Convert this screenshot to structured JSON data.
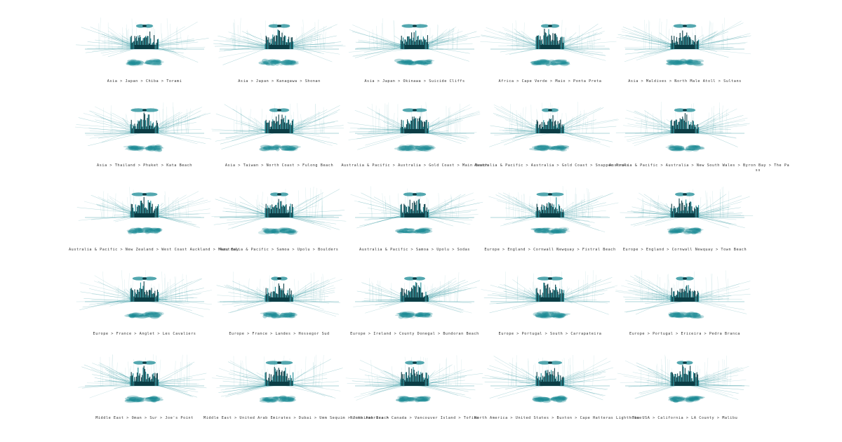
{
  "colors": {
    "accent": "#1a8a94",
    "dark": "#0b3d45",
    "light": "#9fd6dc",
    "caption": "#333333"
  },
  "panels": [
    {
      "caption": "Asia > Japan > Chiba > Torami"
    },
    {
      "caption": "Asia > Japan > Kanagawa > Shonan"
    },
    {
      "caption": "Asia > Japan > Okinawa > Suicide Cliffs"
    },
    {
      "caption": "Africa > Cape Verde > Maio > Ponta Preta"
    },
    {
      "caption": "Asia > Maldives > North Male Atoll > Sultans"
    },
    {
      "caption": "Asia > Thailand > Phuket > Kata Beach"
    },
    {
      "caption": "Asia > Taiwan > North Coast > Fulong Beach"
    },
    {
      "caption": "Australia & Pacific > Australia > Gold Coast > Main Beach"
    },
    {
      "caption": "Australia & Pacific > Australia > Gold Coast > Snapper Rocks"
    },
    {
      "caption": "Australia & Pacific > Australia > New South Wales > Byron Bay > The Pa",
      "caption_continued": "ss"
    },
    {
      "caption": "Australia & Pacific > New Zealand > West Coast Auckland > Manu Bay"
    },
    {
      "caption": "Australia & Pacific > Samoa > Upolu > Boulders"
    },
    {
      "caption": "Australia & Pacific > Samoa > Upolu > Sodas"
    },
    {
      "caption": "Europe > England > Cornwall Newquay > Fistral Beach"
    },
    {
      "caption": "Europe > England > Cornwall Newquay > Town Beach"
    },
    {
      "caption": "Europe > France > Anglet > Les Cavaliers"
    },
    {
      "caption": "Europe > France > Landes > Hossegor Sud"
    },
    {
      "caption": "Europe > Ireland > County Donegal > Bundoran Beach"
    },
    {
      "caption": "Europe > Portugal > South > Carrapateira"
    },
    {
      "caption": "Europe > Portugal > Ericeira > Pedra Branca"
    },
    {
      "caption": "Middle East > Oman > Sur > Joe's Point"
    },
    {
      "caption": "Middle East > United Arab Emirates > Dubai > Umm Sequim > Jumeirah Beach"
    },
    {
      "caption": "North America > Canada > Vancouver Island > Tofino"
    },
    {
      "caption": "North America > United States > Buxton > Cape Hatteras Lighthouse"
    },
    {
      "caption": "The USA > California > LA County > Malibu"
    }
  ]
}
